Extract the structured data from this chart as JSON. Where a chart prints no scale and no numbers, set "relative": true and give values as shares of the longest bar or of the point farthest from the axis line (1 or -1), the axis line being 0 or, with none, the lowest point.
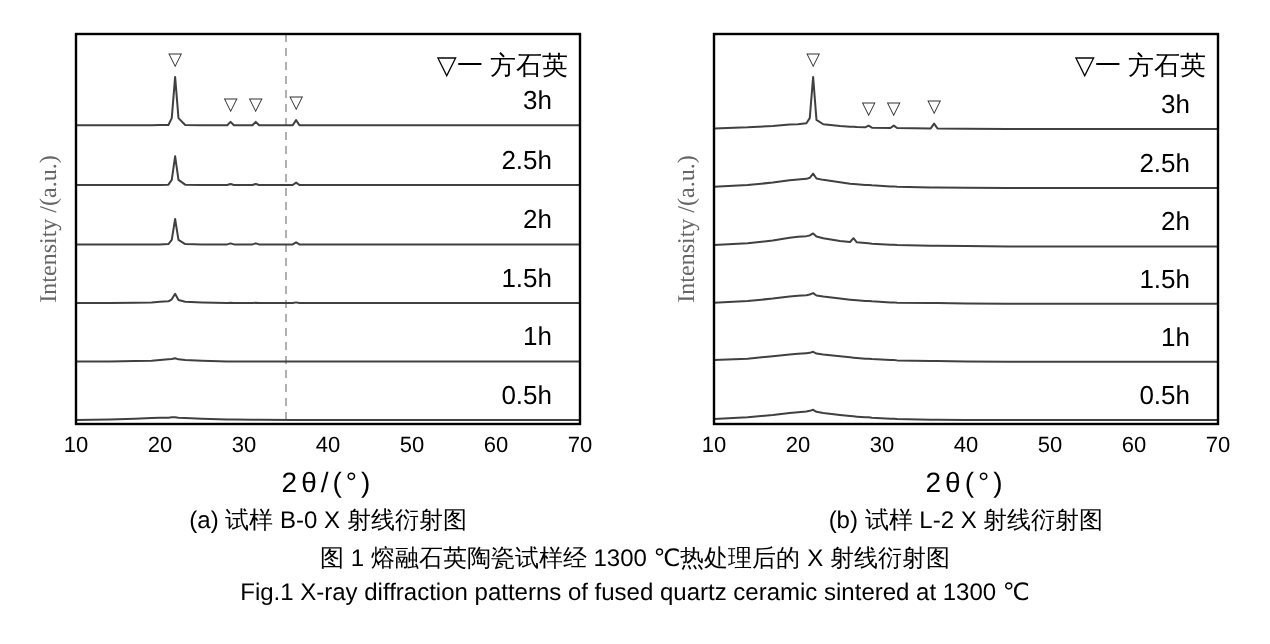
{
  "chart_data": [
    {
      "type": "line",
      "relative": true,
      "title": "(a) 试样 B-0 X 射线衍射图",
      "xlabel": "2θ/(°)",
      "ylabel": "Intensity /(a.u.)",
      "xlim": [
        10,
        70
      ],
      "xticks": [
        10,
        20,
        30,
        40,
        50,
        60,
        70
      ],
      "line_style": "solid",
      "x": [
        10,
        14,
        17,
        19,
        20,
        21,
        21.4,
        21.8,
        22.2,
        23,
        25,
        28,
        28.4,
        28.8,
        31,
        31.4,
        31.8,
        35.8,
        36.2,
        36.6,
        40,
        45,
        50,
        55,
        60,
        65,
        70
      ],
      "series": [
        {
          "name": "3h",
          "color": "#404040",
          "values": [
            0.859,
            0.859,
            0.859,
            0.859,
            0.86,
            0.86,
            0.88,
            1,
            0.88,
            0.86,
            0.859,
            0.859,
            0.869,
            0.859,
            0.859,
            0.869,
            0.859,
            0.859,
            0.874,
            0.859,
            0.859,
            0.859,
            0.859,
            0.859,
            0.859,
            0.859,
            0.859
          ]
        },
        {
          "name": "2.5h",
          "color": "#404040",
          "values": [
            0.685,
            0.685,
            0.685,
            0.685,
            0.685,
            0.686,
            0.7,
            0.769,
            0.7,
            0.686,
            0.685,
            0.685,
            0.688,
            0.685,
            0.685,
            0.688,
            0.685,
            0.685,
            0.692,
            0.685,
            0.685,
            0.685,
            0.685,
            0.685,
            0.685,
            0.685,
            0.685
          ]
        },
        {
          "name": "2h",
          "color": "#404040",
          "values": [
            0.512,
            0.512,
            0.512,
            0.512,
            0.512,
            0.513,
            0.525,
            0.586,
            0.525,
            0.513,
            0.512,
            0.512,
            0.515,
            0.512,
            0.512,
            0.515,
            0.512,
            0.512,
            0.518,
            0.512,
            0.512,
            0.512,
            0.512,
            0.512,
            0.512,
            0.512,
            0.512
          ]
        },
        {
          "name": "1.5h",
          "color": "#404040",
          "values": [
            0.341,
            0.341,
            0.342,
            0.343,
            0.345,
            0.346,
            0.352,
            0.368,
            0.35,
            0.345,
            0.343,
            0.341,
            0.342,
            0.341,
            0.341,
            0.342,
            0.341,
            0.341,
            0.343,
            0.341,
            0.341,
            0.341,
            0.341,
            0.341,
            0.341,
            0.341,
            0.341
          ]
        },
        {
          "name": "1h",
          "color": "#404040",
          "values": [
            0.171,
            0.171,
            0.172,
            0.173,
            0.175,
            0.177,
            0.178,
            0.18,
            0.177,
            0.175,
            0.173,
            0.171,
            0.171,
            0.171,
            0.171,
            0.171,
            0.171,
            0.171,
            0.171,
            0.171,
            0.171,
            0.171,
            0.171,
            0.171,
            0.171,
            0.171,
            0.171
          ]
        },
        {
          "name": "0.5h",
          "color": "#404040",
          "values": [
            0,
            0.002,
            0.004,
            0.006,
            0.007,
            0.007,
            0.008,
            0.008,
            0.007,
            0.006,
            0.004,
            0.002,
            0.002,
            0.002,
            0.001,
            0.001,
            0.001,
            0,
            0,
            0,
            0,
            0,
            0,
            0,
            0,
            0,
            0
          ]
        }
      ],
      "ref_lines": [
        {
          "axis": "x",
          "value": 35,
          "color": "#b0b0b0",
          "line_style": "dashed"
        }
      ],
      "annotations": [
        "▽一 方石英",
        "图 1  熔融石英陶瓷试样经 1300 ℃热处理后的 X 射线衍射图",
        "Fig.1  X-ray diffraction  patterns of fused quartz ceramic sintered at  1300  ℃",
        {
          "text": "▽",
          "x": 21.8,
          "y": 1
        },
        {
          "text": "▽",
          "x": 28.4,
          "y": 0.869
        },
        {
          "text": "▽",
          "x": 31.4,
          "y": 0.869
        },
        {
          "text": "▽",
          "x": 36.2,
          "y": 0.874
        }
      ]
    },
    {
      "type": "line",
      "relative": true,
      "title": "(b) 试样 L-2 X 射线衍射图",
      "xlabel": "2θ(°)",
      "ylabel": "Intensity /(a.u.)",
      "xlim": [
        10,
        70
      ],
      "xticks": [
        10,
        20,
        30,
        40,
        50,
        60,
        70
      ],
      "line_style": "solid",
      "x": [
        10,
        14,
        17,
        19,
        20,
        21,
        21.4,
        21.8,
        22.2,
        23,
        25,
        26.2,
        26.6,
        27,
        28,
        28.4,
        28.8,
        31,
        31.4,
        31.8,
        35.8,
        36.2,
        36.6,
        40,
        45,
        50,
        55,
        60,
        65,
        70
      ],
      "series": [
        {
          "name": "3h",
          "color": "#404040",
          "values": [
            0.85,
            0.853,
            0.857,
            0.861,
            0.862,
            0.865,
            0.88,
            1,
            0.875,
            0.862,
            0.857,
            0.855,
            0.855,
            0.854,
            0.853,
            0.858,
            0.852,
            0.851,
            0.858,
            0.851,
            0.85,
            0.864,
            0.85,
            0.849,
            0.848,
            0.848,
            0.848,
            0.848,
            0.848,
            0.848
          ]
        },
        {
          "name": "2.5h",
          "color": "#404040",
          "values": [
            0.68,
            0.685,
            0.692,
            0.699,
            0.701,
            0.703,
            0.706,
            0.718,
            0.704,
            0.7,
            0.693,
            0.689,
            0.688,
            0.687,
            0.685,
            0.685,
            0.684,
            0.681,
            0.681,
            0.68,
            0.678,
            0.678,
            0.678,
            0.677,
            0.676,
            0.676,
            0.676,
            0.676,
            0.676,
            0.676
          ]
        },
        {
          "name": "2h",
          "color": "#404040",
          "values": [
            0.51,
            0.515,
            0.523,
            0.531,
            0.534,
            0.536,
            0.538,
            0.544,
            0.535,
            0.53,
            0.522,
            0.519,
            0.53,
            0.518,
            0.516,
            0.515,
            0.514,
            0.511,
            0.511,
            0.51,
            0.508,
            0.508,
            0.508,
            0.507,
            0.506,
            0.506,
            0.506,
            0.506,
            0.506,
            0.506
          ]
        },
        {
          "name": "1.5h",
          "color": "#404040",
          "values": [
            0.342,
            0.347,
            0.354,
            0.36,
            0.362,
            0.364,
            0.366,
            0.37,
            0.363,
            0.36,
            0.354,
            0.351,
            0.35,
            0.349,
            0.347,
            0.347,
            0.346,
            0.343,
            0.343,
            0.342,
            0.341,
            0.341,
            0.341,
            0.34,
            0.339,
            0.339,
            0.339,
            0.339,
            0.339,
            0.339
          ]
        },
        {
          "name": "1h",
          "color": "#404040",
          "values": [
            0.175,
            0.179,
            0.186,
            0.191,
            0.193,
            0.195,
            0.196,
            0.199,
            0.194,
            0.191,
            0.186,
            0.183,
            0.182,
            0.181,
            0.179,
            0.179,
            0.178,
            0.175,
            0.175,
            0.174,
            0.172,
            0.172,
            0.172,
            0.171,
            0.17,
            0.17,
            0.17,
            0.17,
            0.17,
            0.17
          ]
        },
        {
          "name": "0.5h",
          "color": "#404040",
          "values": [
            0.003,
            0.008,
            0.015,
            0.021,
            0.023,
            0.025,
            0.027,
            0.03,
            0.024,
            0.021,
            0.015,
            0.012,
            0.011,
            0.01,
            0.008,
            0.008,
            0.007,
            0.004,
            0.004,
            0.003,
            0.001,
            0.001,
            0.001,
            0,
            0,
            0,
            0,
            0,
            0,
            0
          ]
        }
      ],
      "annotations": [
        "▽一 方石英",
        {
          "text": "▽",
          "x": 21.8,
          "y": 1
        },
        {
          "text": "▽",
          "x": 28.4,
          "y": 0.858
        },
        {
          "text": "▽",
          "x": 31.4,
          "y": 0.858
        },
        {
          "text": "▽",
          "x": 36.2,
          "y": 0.864
        }
      ]
    }
  ]
}
